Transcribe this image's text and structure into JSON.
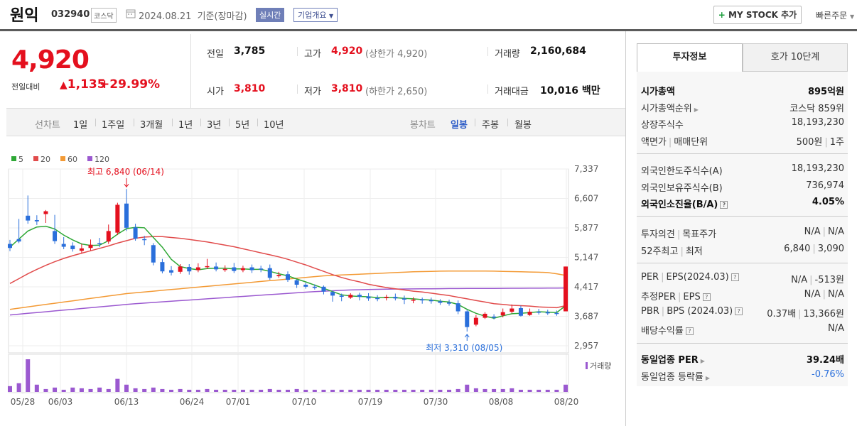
{
  "header": {
    "name": "원익",
    "code": "032940",
    "market": "코스닥",
    "date": "2024.08.21",
    "date_suffix": "기준(장마감)",
    "realtime": "실시간",
    "company_info": "기업개요",
    "mystock_plus": "+",
    "mystock": "MY STOCK 추가",
    "quick_order": "빠른주문"
  },
  "price": {
    "current": "4,920",
    "diff_label": "전일대비",
    "diff": "1,135",
    "rate": "+29.99%"
  },
  "stats": {
    "prev_label": "전일",
    "prev": "3,785",
    "high_label": "고가",
    "high": "4,920",
    "upper_limit": "(상한가 4,920)",
    "volume_label": "거래량",
    "volume": "2,160,684",
    "open_label": "시가",
    "open": "3,810",
    "low_label": "저가",
    "low": "3,810",
    "lower_limit": "(하한가 2,650)",
    "amount_label": "거래대금",
    "amount": "10,016 백만"
  },
  "period_bar": {
    "line_chart": "선차트",
    "periods": [
      "1일",
      "1주일",
      "3개월",
      "1년",
      "3년",
      "5년",
      "10년"
    ],
    "candle_chart": "봉차트",
    "candles": [
      "일봉",
      "주봉",
      "월봉"
    ],
    "selected_candle": "일봉"
  },
  "chart_data": {
    "type": "candlestick",
    "legend": [
      {
        "name": "5",
        "color": "#2fa836"
      },
      {
        "name": "20",
        "color": "#e14b4b"
      },
      {
        "name": "60",
        "color": "#f39a35"
      },
      {
        "name": "120",
        "color": "#9b59d0"
      }
    ],
    "y_ticks": [
      "7,337",
      "6,607",
      "5,877",
      "5,147",
      "4,417",
      "3,687",
      "2,957"
    ],
    "ylim": [
      2957,
      7337
    ],
    "x_ticks": [
      "05/28",
      "06/03",
      "06/13",
      "06/24",
      "07/01",
      "07/10",
      "07/19",
      "07/30",
      "08/08",
      "08/20"
    ],
    "high_annotation": "최고 6,840 (06/14)",
    "low_annotation": "최저 3,310 (08/05)",
    "volume_label": "거래량",
    "up_color": "#e4101e",
    "down_color": "#2a6fdb",
    "candles": [
      [
        5480,
        5380,
        5580,
        5300
      ],
      [
        5600,
        5540,
        6100,
        5500
      ],
      [
        6180,
        6060,
        6680,
        5980
      ],
      [
        6070,
        6040,
        6190,
        5950
      ],
      [
        6220,
        6290,
        6320,
        6000
      ],
      [
        5800,
        5550,
        6200,
        5480
      ],
      [
        5480,
        5410,
        5650,
        5350
      ],
      [
        5440,
        5350,
        5520,
        5290
      ],
      [
        5310,
        5370,
        5480,
        5250
      ],
      [
        5380,
        5460,
        5590,
        5320
      ],
      [
        5500,
        5480,
        5630,
        5400
      ],
      [
        5540,
        5800,
        5960,
        5480
      ],
      [
        5760,
        6450,
        6500,
        5700
      ],
      [
        6480,
        5880,
        6840,
        5800
      ],
      [
        5890,
        5610,
        5980,
        5560
      ],
      [
        5600,
        5580,
        5680,
        5450
      ],
      [
        5450,
        5020,
        5500,
        4950
      ],
      [
        5030,
        4800,
        5110,
        4750
      ],
      [
        4830,
        4770,
        4930,
        4700
      ],
      [
        4790,
        4920,
        4980,
        4740
      ],
      [
        4910,
        4800,
        4980,
        4720
      ],
      [
        4830,
        4900,
        5000,
        4780
      ],
      [
        4920,
        4930,
        5110,
        4860
      ],
      [
        4920,
        4850,
        5020,
        4800
      ],
      [
        4860,
        4860,
        4950,
        4790
      ],
      [
        4900,
        4810,
        5010,
        4760
      ],
      [
        4830,
        4880,
        4940,
        4780
      ],
      [
        4900,
        4830,
        4970,
        4760
      ],
      [
        4870,
        4850,
        4940,
        4780
      ],
      [
        4880,
        4640,
        4970,
        4590
      ],
      [
        4680,
        4710,
        4790,
        4640
      ],
      [
        4730,
        4590,
        4800,
        4540
      ],
      [
        4580,
        4470,
        4600,
        4390
      ],
      [
        4470,
        4420,
        4520,
        4370
      ],
      [
        4420,
        4390,
        4480,
        4350
      ],
      [
        4420,
        4300,
        4450,
        4230
      ],
      [
        4290,
        4200,
        4320,
        4050
      ],
      [
        4200,
        4170,
        4250,
        4060
      ],
      [
        4150,
        4220,
        4260,
        4120
      ],
      [
        4220,
        4170,
        4270,
        4080
      ],
      [
        4180,
        4130,
        4260,
        4070
      ],
      [
        4140,
        4130,
        4210,
        4060
      ],
      [
        4140,
        4170,
        4220,
        4080
      ],
      [
        4170,
        4130,
        4250,
        4080
      ],
      [
        4130,
        4100,
        4200,
        3990
      ],
      [
        4100,
        4100,
        4160,
        4010
      ],
      [
        4110,
        4080,
        4150,
        4000
      ],
      [
        4090,
        4060,
        4150,
        4000
      ],
      [
        4060,
        4020,
        4110,
        3970
      ],
      [
        4030,
        4000,
        4100,
        3950
      ],
      [
        4010,
        3810,
        4080,
        3740
      ],
      [
        3810,
        3420,
        3850,
        3310
      ],
      [
        3480,
        3650,
        3720,
        3440
      ],
      [
        3650,
        3750,
        3790,
        3620
      ],
      [
        3680,
        3650,
        3740,
        3610
      ],
      [
        3710,
        3790,
        3880,
        3660
      ],
      [
        3800,
        3880,
        3980,
        3760
      ],
      [
        3890,
        3700,
        3950,
        3680
      ],
      [
        3720,
        3800,
        3880,
        3700
      ],
      [
        3800,
        3780,
        3870,
        3730
      ],
      [
        3790,
        3760,
        3850,
        3720
      ],
      [
        3770,
        3750,
        3830,
        3700
      ],
      [
        3810,
        4920,
        4920,
        3810
      ]
    ],
    "ma5": [
      5400,
      5600,
      5800,
      5900,
      5920,
      5850,
      5700,
      5580,
      5480,
      5440,
      5450,
      5560,
      5720,
      5860,
      5890,
      5880,
      5640,
      5400,
      5100,
      4920,
      4870,
      4840,
      4870,
      4880,
      4880,
      4860,
      4860,
      4850,
      4850,
      4800,
      4740,
      4690,
      4610,
      4540,
      4460,
      4380,
      4300,
      4220,
      4190,
      4180,
      4170,
      4150,
      4150,
      4150,
      4130,
      4120,
      4100,
      4090,
      4060,
      4040,
      3980,
      3860,
      3760,
      3690,
      3640,
      3700,
      3750,
      3760,
      3780,
      3800,
      3790,
      3780,
      3950
    ],
    "ma20": [
      4500,
      4620,
      4740,
      4850,
      4950,
      5040,
      5120,
      5190,
      5250,
      5310,
      5370,
      5430,
      5500,
      5560,
      5620,
      5650,
      5660,
      5660,
      5640,
      5620,
      5590,
      5560,
      5530,
      5490,
      5450,
      5410,
      5360,
      5310,
      5260,
      5210,
      5160,
      5100,
      5030,
      4960,
      4880,
      4800,
      4720,
      4650,
      4590,
      4540,
      4480,
      4440,
      4400,
      4370,
      4340,
      4310,
      4290,
      4260,
      4230,
      4200,
      4160,
      4120,
      4080,
      4040,
      4000,
      3980,
      3960,
      3950,
      3940,
      3920,
      3910,
      3900,
      3950
    ],
    "ma60": [
      3860,
      3890,
      3920,
      3950,
      3980,
      4010,
      4040,
      4070,
      4100,
      4130,
      4160,
      4190,
      4220,
      4250,
      4270,
      4290,
      4310,
      4330,
      4350,
      4370,
      4390,
      4410,
      4430,
      4450,
      4470,
      4490,
      4510,
      4530,
      4550,
      4570,
      4590,
      4610,
      4630,
      4650,
      4670,
      4690,
      4700,
      4710,
      4720,
      4730,
      4740,
      4750,
      4760,
      4770,
      4780,
      4790,
      4795,
      4800,
      4805,
      4810,
      4810,
      4810,
      4810,
      4810,
      4805,
      4800,
      4795,
      4790,
      4785,
      4780,
      4770,
      4740,
      4700
    ],
    "ma120": [
      3720,
      3740,
      3760,
      3780,
      3800,
      3820,
      3840,
      3860,
      3880,
      3900,
      3920,
      3940,
      3960,
      3980,
      4000,
      4015,
      4030,
      4045,
      4060,
      4075,
      4090,
      4105,
      4120,
      4135,
      4150,
      4165,
      4180,
      4195,
      4210,
      4225,
      4240,
      4255,
      4270,
      4285,
      4300,
      4310,
      4320,
      4330,
      4340,
      4345,
      4350,
      4355,
      4360,
      4362,
      4364,
      4366,
      4368,
      4370,
      4372,
      4374,
      4375,
      4376,
      4377,
      4378,
      4379,
      4380,
      4381,
      4382,
      4383,
      4384,
      4385,
      4386,
      4388
    ],
    "volumes": [
      8,
      12,
      45,
      10,
      4,
      6,
      3,
      6,
      5,
      4,
      6,
      4,
      18,
      10,
      5,
      4,
      6,
      4,
      3,
      4,
      3,
      3,
      4,
      3,
      3,
      3,
      3,
      3,
      3,
      4,
      3,
      3,
      4,
      3,
      3,
      3,
      3,
      3,
      3,
      3,
      3,
      3,
      3,
      3,
      3,
      3,
      3,
      3,
      3,
      3,
      4,
      10,
      5,
      4,
      4,
      4,
      5,
      3,
      3,
      3,
      3,
      3,
      10
    ]
  },
  "side_panel": {
    "tab_active": "투자정보",
    "tab_inactive": "호가 10단계",
    "rows": [
      {
        "label": "시가총액",
        "value": "895억원"
      },
      {
        "label": "시가총액순위",
        "value": "코스닥 859위"
      },
      {
        "label": "상장주식수",
        "value": "18,193,230"
      },
      {
        "label_a": "액면가",
        "label_b": "매매단위",
        "value_a": "500원",
        "value_b": "1주"
      },
      {
        "label": "외국인한도주식수(A)",
        "value": "18,193,230"
      },
      {
        "label": "외국인보유주식수(B)",
        "value": "736,974"
      },
      {
        "label": "외국인소진율(B/A)",
        "value": "4.05%"
      },
      {
        "label_a": "투자의견",
        "label_b": "목표주가",
        "value_a": "N/A",
        "value_b": "N/A"
      },
      {
        "label_a": "52주최고",
        "label_b": "최저",
        "value_a": "6,840",
        "value_b": "3,090"
      },
      {
        "label_a": "PER",
        "label_b": "EPS(2024.03)",
        "value_a": "N/A",
        "value_b": "-513원"
      },
      {
        "label_a": "추정PER",
        "label_b": "EPS",
        "value_a": "N/A",
        "value_b": "N/A"
      },
      {
        "label_a": "PBR",
        "label_b": "BPS (2024.03)",
        "value_a": "0.37배",
        "value_b": "13,366원"
      },
      {
        "label": "배당수익률",
        "value": "N/A"
      },
      {
        "label": "동일업종 PER",
        "value": "39.24배"
      },
      {
        "label": "동일업종 등락률",
        "value": "-0.76%"
      }
    ]
  }
}
